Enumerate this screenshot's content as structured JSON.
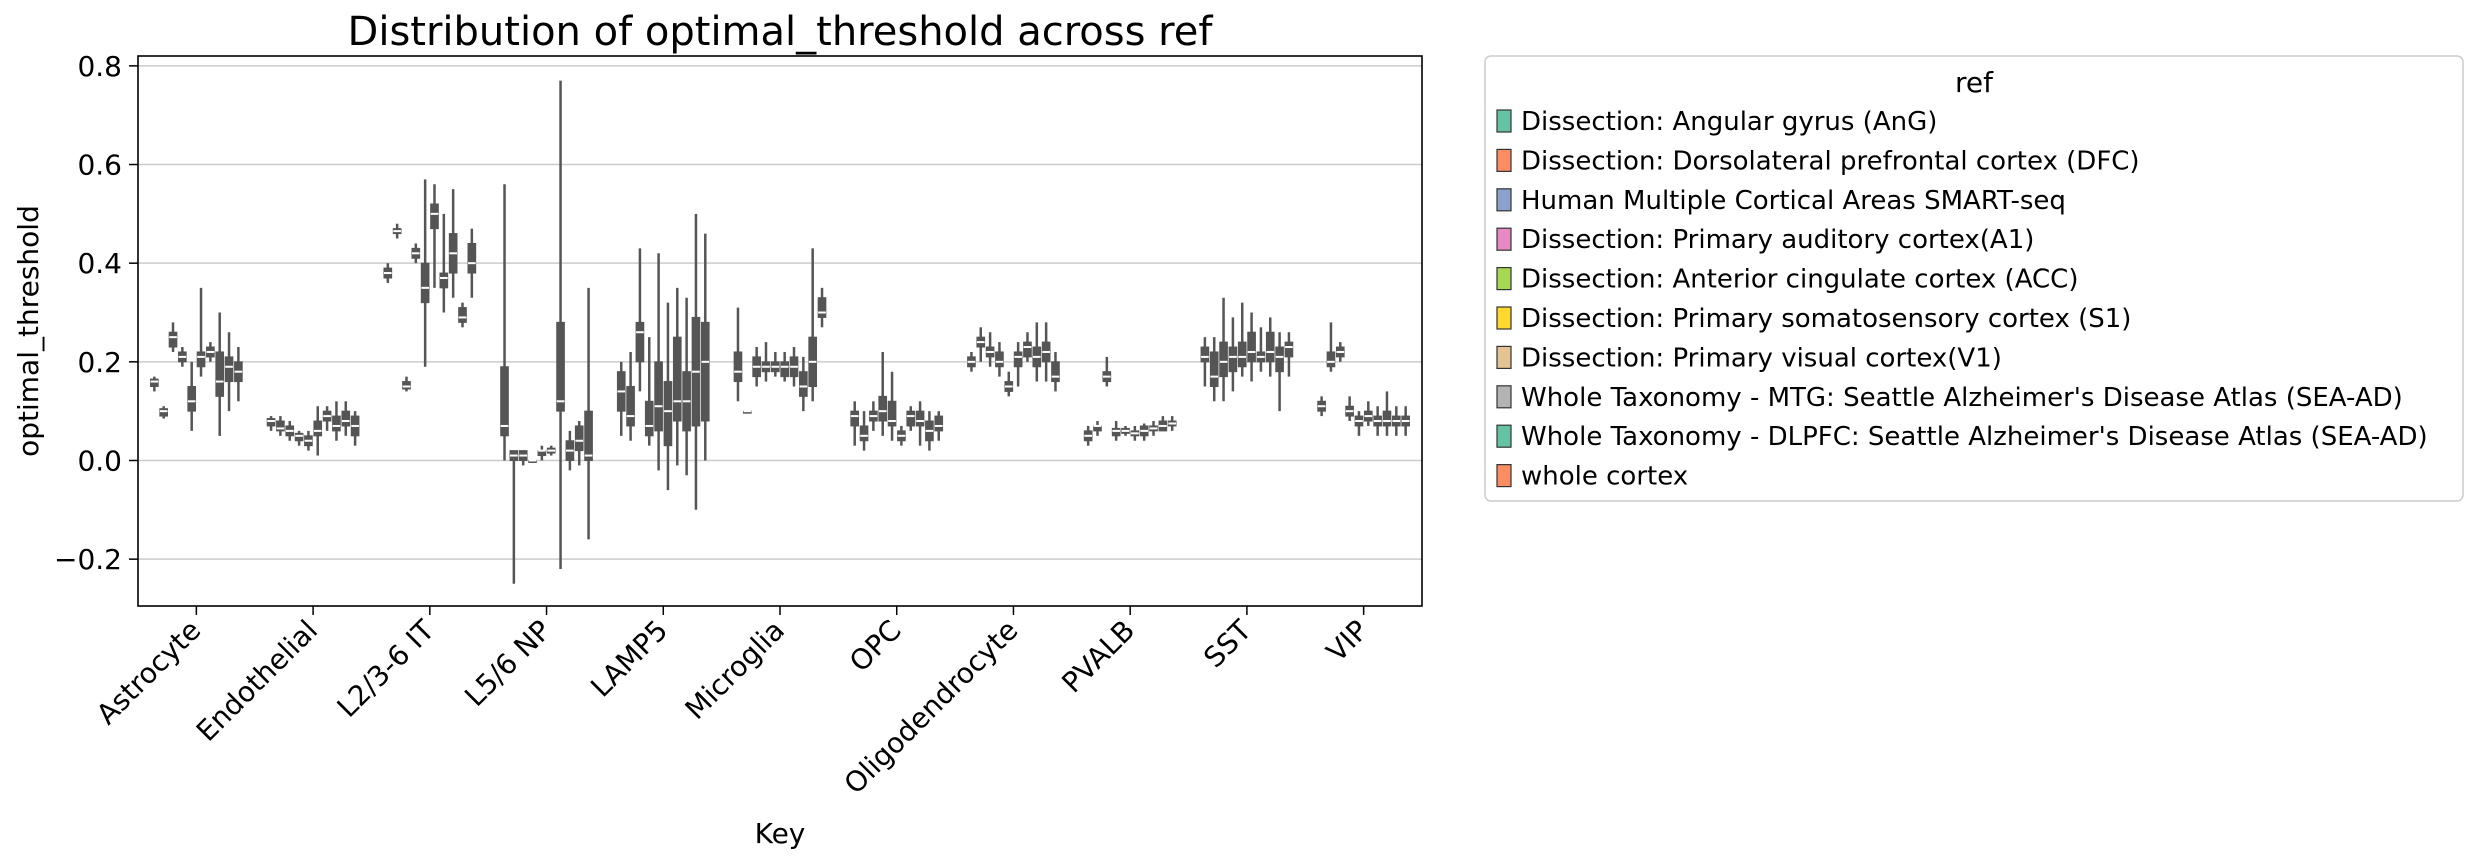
{
  "chart_data": {
    "type": "boxplot",
    "title": "Distribution of optimal_threshold across ref",
    "xlabel": "Key",
    "ylabel": "optimal_threshold",
    "ylim": [
      -0.295,
      0.82
    ],
    "yticks": [
      -0.2,
      0.0,
      0.2,
      0.4,
      0.6,
      0.8
    ],
    "ytick_labels": [
      "−0.2",
      "0.0",
      "0.2",
      "0.4",
      "0.6",
      "0.8"
    ],
    "grid": "horizontal",
    "legend": {
      "title": "ref",
      "placement": "outside-right"
    },
    "categories": [
      "Astrocyte",
      "Endothelial",
      "L2/3-6 IT",
      "L5/6 NP",
      "LAMP5",
      "Microglia",
      "OPC",
      "Oligodendrocyte",
      "PVALB",
      "SST",
      "VIP"
    ],
    "series": [
      {
        "name": "Dissection: Angular gyrus (AnG)",
        "color": "#66c2a5",
        "boxes": [
          [
            0.14,
            0.15,
            0.16,
            0.165,
            0.17
          ],
          [
            0.06,
            0.07,
            0.08,
            0.085,
            0.09
          ],
          [
            0.36,
            0.37,
            0.38,
            0.39,
            0.4
          ],
          [
            0.0,
            0.05,
            0.07,
            0.19,
            0.56
          ],
          [
            0.05,
            0.1,
            0.14,
            0.18,
            0.2
          ],
          [
            0.12,
            0.16,
            0.18,
            0.22,
            0.31
          ],
          [
            0.03,
            0.07,
            0.09,
            0.1,
            0.12
          ],
          [
            0.18,
            0.19,
            0.2,
            0.21,
            0.22
          ],
          [
            0.03,
            0.04,
            0.05,
            0.06,
            0.07
          ],
          [
            0.15,
            0.2,
            0.21,
            0.23,
            0.25
          ],
          [
            0.09,
            0.1,
            0.11,
            0.12,
            0.13
          ]
        ]
      },
      {
        "name": "Dissection: Dorsolateral prefrontal cortex (DFC)",
        "color": "#fc8d62",
        "boxes": [
          [
            0.085,
            0.09,
            0.1,
            0.105,
            0.11
          ],
          [
            0.05,
            0.06,
            0.065,
            0.08,
            0.09
          ],
          [
            0.45,
            0.46,
            0.465,
            0.47,
            0.48
          ],
          [
            -0.25,
            0.0,
            0.01,
            0.02,
            0.02
          ],
          [
            0.04,
            0.07,
            0.09,
            0.15,
            0.22
          ],
          [
            0.1,
            0.1,
            0.1,
            0.1,
            0.1
          ],
          [
            0.02,
            0.04,
            0.05,
            0.07,
            0.1
          ],
          [
            0.2,
            0.23,
            0.24,
            0.25,
            0.27
          ],
          [
            0.05,
            0.06,
            0.07,
            0.07,
            0.08
          ],
          [
            0.12,
            0.15,
            0.17,
            0.22,
            0.25
          ],
          [
            0.18,
            0.19,
            0.2,
            0.22,
            0.28
          ]
        ]
      },
      {
        "name": "Human Multiple Cortical Areas SMART-seq",
        "color": "#8da0cb",
        "boxes": [
          [
            0.22,
            0.23,
            0.25,
            0.26,
            0.28
          ],
          [
            0.04,
            0.05,
            0.06,
            0.07,
            0.08
          ],
          [
            0.14,
            0.145,
            0.15,
            0.16,
            0.17
          ],
          [
            -0.01,
            0.0,
            0.01,
            0.02,
            0.02
          ],
          [
            0.14,
            0.2,
            0.26,
            0.28,
            0.43
          ],
          [
            0.15,
            0.17,
            0.19,
            0.21,
            0.23
          ],
          [
            0.06,
            0.08,
            0.09,
            0.1,
            0.12
          ],
          [
            0.19,
            0.21,
            0.22,
            0.23,
            0.26
          ],
          [
            0.15,
            0.16,
            0.17,
            0.18,
            0.21
          ],
          [
            0.12,
            0.17,
            0.2,
            0.24,
            0.33
          ],
          [
            0.2,
            0.21,
            0.22,
            0.23,
            0.24
          ]
        ]
      },
      {
        "name": "Dissection: Primary auditory cortex(A1)",
        "color": "#e78ac3",
        "boxes": [
          [
            0.19,
            0.2,
            0.21,
            0.22,
            0.23
          ],
          [
            0.03,
            0.04,
            0.05,
            0.055,
            0.06
          ],
          [
            0.4,
            0.41,
            0.42,
            0.43,
            0.44
          ],
          [
            0.0,
            0.0,
            0.0,
            0.0,
            0.0
          ],
          [
            0.03,
            0.05,
            0.07,
            0.12,
            0.25
          ],
          [
            0.16,
            0.18,
            0.19,
            0.2,
            0.24
          ],
          [
            0.05,
            0.08,
            0.1,
            0.13,
            0.22
          ],
          [
            0.17,
            0.19,
            0.2,
            0.22,
            0.24
          ],
          [
            0.04,
            0.05,
            0.06,
            0.065,
            0.08
          ],
          [
            0.14,
            0.18,
            0.21,
            0.23,
            0.29
          ],
          [
            0.08,
            0.09,
            0.1,
            0.11,
            0.13
          ]
        ]
      },
      {
        "name": "Dissection: Anterior cingulate cortex (ACC)",
        "color": "#a6d854",
        "boxes": [
          [
            0.06,
            0.1,
            0.12,
            0.15,
            0.2
          ],
          [
            0.02,
            0.03,
            0.04,
            0.05,
            0.06
          ],
          [
            0.19,
            0.32,
            0.35,
            0.4,
            0.57
          ],
          [
            0.0,
            0.01,
            0.02,
            0.02,
            0.03
          ],
          [
            -0.02,
            0.06,
            0.11,
            0.2,
            0.42
          ],
          [
            0.17,
            0.18,
            0.19,
            0.2,
            0.22
          ],
          [
            0.04,
            0.07,
            0.08,
            0.12,
            0.18
          ],
          [
            0.13,
            0.14,
            0.15,
            0.16,
            0.18
          ],
          [
            0.05,
            0.055,
            0.06,
            0.065,
            0.07
          ],
          [
            0.17,
            0.19,
            0.21,
            0.24,
            0.32
          ],
          [
            0.05,
            0.07,
            0.08,
            0.09,
            0.1
          ]
        ]
      },
      {
        "name": "Dissection: Primary somatosensory cortex (S1)",
        "color": "#ffd92f",
        "boxes": [
          [
            0.17,
            0.19,
            0.21,
            0.22,
            0.35
          ],
          [
            0.01,
            0.05,
            0.06,
            0.08,
            0.11
          ],
          [
            0.35,
            0.47,
            0.5,
            0.52,
            0.56
          ],
          [
            0.01,
            0.015,
            0.02,
            0.025,
            0.03
          ],
          [
            -0.06,
            0.03,
            0.1,
            0.16,
            0.32
          ],
          [
            0.16,
            0.17,
            0.19,
            0.2,
            0.22
          ],
          [
            0.03,
            0.04,
            0.05,
            0.06,
            0.07
          ],
          [
            0.15,
            0.19,
            0.21,
            0.22,
            0.24
          ],
          [
            0.04,
            0.05,
            0.055,
            0.06,
            0.07
          ],
          [
            0.16,
            0.2,
            0.22,
            0.26,
            0.3
          ],
          [
            0.07,
            0.08,
            0.09,
            0.1,
            0.12
          ]
        ]
      },
      {
        "name": "Dissection: Primary visual cortex(V1)",
        "color": "#e5c494",
        "boxes": [
          [
            0.2,
            0.21,
            0.22,
            0.23,
            0.24
          ],
          [
            0.06,
            0.08,
            0.09,
            0.1,
            0.11
          ],
          [
            0.3,
            0.35,
            0.37,
            0.38,
            0.5
          ],
          [
            -0.22,
            0.1,
            0.12,
            0.28,
            0.77
          ],
          [
            -0.01,
            0.08,
            0.12,
            0.25,
            0.35
          ],
          [
            0.15,
            0.17,
            0.19,
            0.21,
            0.23
          ],
          [
            0.06,
            0.07,
            0.09,
            0.1,
            0.11
          ],
          [
            0.2,
            0.21,
            0.23,
            0.24,
            0.26
          ],
          [
            0.04,
            0.05,
            0.06,
            0.07,
            0.075
          ],
          [
            0.18,
            0.2,
            0.21,
            0.22,
            0.27
          ],
          [
            0.05,
            0.07,
            0.08,
            0.09,
            0.11
          ]
        ]
      },
      {
        "name": "Whole Taxonomy - MTG: Seattle Alzheimer's Disease Atlas (SEA-AD)",
        "color": "#b3b3b3",
        "boxes": [
          [
            0.05,
            0.13,
            0.16,
            0.22,
            0.3
          ],
          [
            0.04,
            0.06,
            0.07,
            0.09,
            0.12
          ],
          [
            0.33,
            0.38,
            0.42,
            0.46,
            0.55
          ],
          [
            -0.02,
            0.0,
            0.02,
            0.04,
            0.06
          ],
          [
            -0.03,
            0.06,
            0.12,
            0.18,
            0.33
          ],
          [
            0.1,
            0.13,
            0.15,
            0.18,
            0.21
          ],
          [
            0.03,
            0.07,
            0.08,
            0.1,
            0.12
          ],
          [
            0.16,
            0.19,
            0.21,
            0.23,
            0.28
          ],
          [
            0.05,
            0.06,
            0.065,
            0.07,
            0.08
          ],
          [
            0.17,
            0.2,
            0.22,
            0.26,
            0.29
          ],
          [
            0.05,
            0.07,
            0.08,
            0.1,
            0.14
          ]
        ]
      },
      {
        "name": "Whole Taxonomy - DLPFC: Seattle Alzheimer's Disease Atlas (SEA-AD)",
        "color": "#66c2a5",
        "boxes": [
          [
            0.1,
            0.16,
            0.19,
            0.21,
            0.26
          ],
          [
            0.05,
            0.07,
            0.08,
            0.1,
            0.12
          ],
          [
            0.27,
            0.28,
            0.29,
            0.31,
            0.32
          ],
          [
            -0.01,
            0.02,
            0.04,
            0.07,
            0.08
          ],
          [
            -0.1,
            0.07,
            0.18,
            0.29,
            0.5
          ],
          [
            0.12,
            0.15,
            0.2,
            0.25,
            0.43
          ],
          [
            0.02,
            0.04,
            0.06,
            0.08,
            0.1
          ],
          [
            0.16,
            0.2,
            0.22,
            0.24,
            0.28
          ],
          [
            0.06,
            0.06,
            0.07,
            0.08,
            0.09
          ],
          [
            0.1,
            0.18,
            0.21,
            0.23,
            0.26
          ],
          [
            0.05,
            0.07,
            0.08,
            0.09,
            0.11
          ]
        ]
      },
      {
        "name": "whole cortex",
        "color": "#fc8d62",
        "boxes": [
          [
            0.12,
            0.16,
            0.18,
            0.2,
            0.23
          ],
          [
            0.03,
            0.05,
            0.07,
            0.09,
            0.1
          ],
          [
            0.33,
            0.38,
            0.4,
            0.44,
            0.47
          ],
          [
            -0.16,
            0.0,
            0.01,
            0.1,
            0.35
          ],
          [
            0.0,
            0.08,
            0.2,
            0.28,
            0.46
          ],
          [
            0.27,
            0.29,
            0.3,
            0.33,
            0.35
          ],
          [
            0.04,
            0.06,
            0.07,
            0.09,
            0.1
          ],
          [
            0.14,
            0.16,
            0.17,
            0.2,
            0.22
          ],
          [
            0.06,
            0.07,
            0.075,
            0.08,
            0.09
          ],
          [
            0.17,
            0.21,
            0.23,
            0.24,
            0.26
          ],
          [
            0.05,
            0.07,
            0.08,
            0.09,
            0.11
          ]
        ]
      }
    ],
    "box_fill": "#555555",
    "median_color": "#ffffff"
  }
}
